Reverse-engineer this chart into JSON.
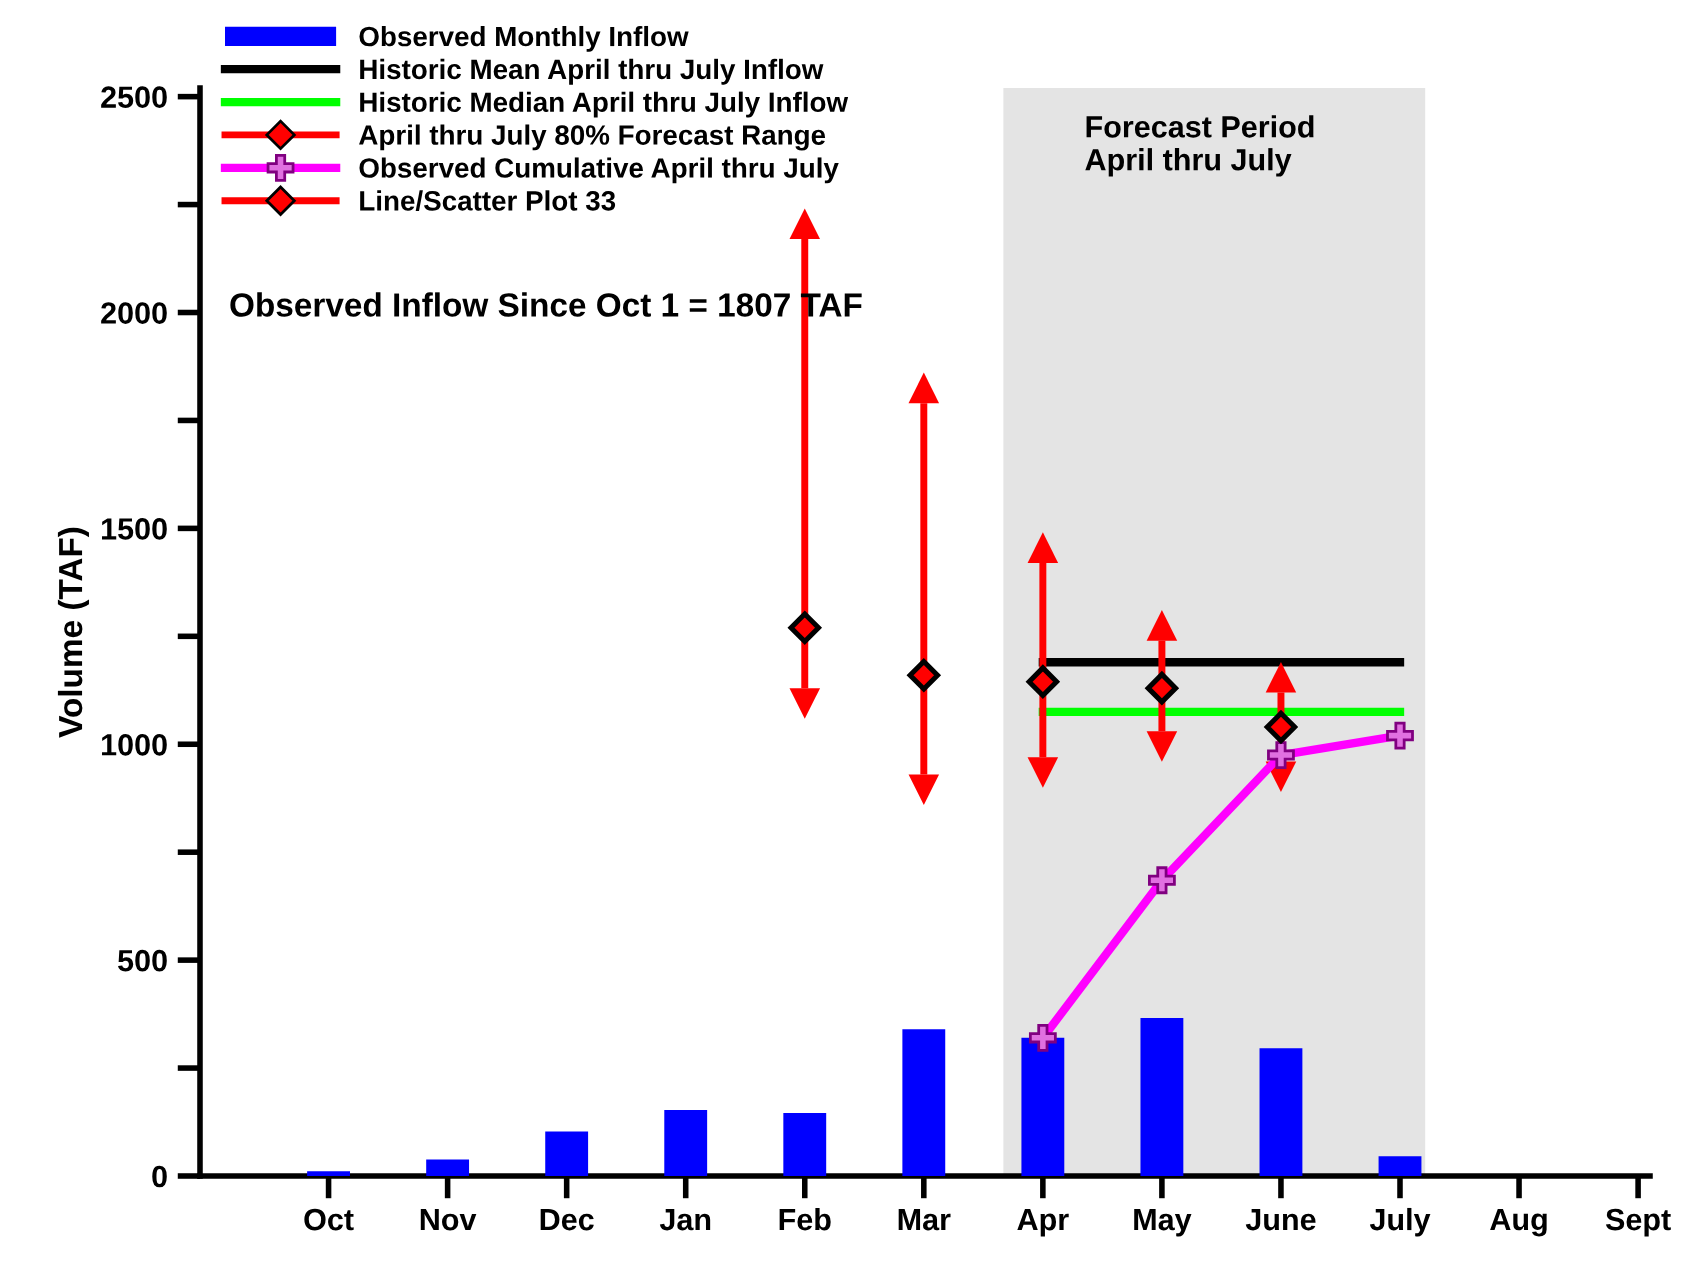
{
  "chart_data": {
    "type": "bar",
    "categories": [
      "Oct",
      "Nov",
      "Dec",
      "Jan",
      "Feb",
      "Mar",
      "Apr",
      "May",
      "June",
      "July",
      "Aug",
      "Sept"
    ],
    "ylabel": "Volume (TAF)",
    "ylim": [
      0,
      2520
    ],
    "yticks": [
      0,
      {
        "value": 250,
        "label": null
      },
      500,
      {
        "value": 750,
        "label": null
      },
      1000,
      {
        "value": 1250,
        "label": null
      },
      1500,
      {
        "value": 1750,
        "label": null
      },
      2000,
      {
        "value": 2250,
        "label": null
      },
      2500
    ],
    "grid": false,
    "legend": "top left",
    "annotations": [
      "Observed Inflow Since Oct 1 = 1807 TAF"
    ],
    "bands": [
      {
        "axis": "x",
        "from": "Apr",
        "to": "July",
        "label": "Forecast Period\nApril thru July",
        "color": "#e4e4e4"
      }
    ],
    "series": [
      {
        "name": "Observed Monthly Inflow",
        "color": "#0000ff",
        "values": [
          11,
          38,
          103,
          153,
          146,
          340,
          320,
          366,
          296,
          46,
          null,
          null
        ]
      },
      {
        "name": "Historic Mean April thru July Inflow",
        "type": "line",
        "color": "#000000",
        "marker": "none",
        "values": [
          null,
          null,
          null,
          null,
          null,
          null,
          1190,
          1190,
          1190,
          1190,
          null,
          null
        ]
      },
      {
        "name": "Historic Median April thru July Inflow",
        "type": "line",
        "color": "#00ff00",
        "marker": "none",
        "values": [
          null,
          null,
          null,
          null,
          null,
          null,
          1075,
          1075,
          1075,
          1075,
          null,
          null
        ]
      },
      {
        "name": "April thru July 80% Forecast Range",
        "type": "scatter",
        "color": "#ff0000",
        "marker": "diamond",
        "values": [
          null,
          null,
          null,
          null,
          null,
          null,
          1145,
          1130,
          1040,
          null,
          null,
          null
        ],
        "errors": [
          null,
          null,
          null,
          null,
          null,
          null,
          [
            970,
            1420
          ],
          [
            1030,
            1240
          ],
          [
            960,
            1120
          ],
          null,
          null,
          null
        ]
      },
      {
        "name": "Observed Cumulative April thru July",
        "type": "line",
        "color": "#ff00ff",
        "marker": "cross",
        "values": [
          null,
          null,
          null,
          null,
          null,
          null,
          320,
          685,
          975,
          1020,
          null,
          null
        ]
      },
      {
        "name": "Line/Scatter Plot 33",
        "type": "scatter",
        "color": "#ff0000",
        "marker": "diamond",
        "values": [
          null,
          null,
          null,
          null,
          1270,
          1160,
          null,
          null,
          null,
          null,
          null,
          null
        ],
        "errors": [
          null,
          null,
          null,
          null,
          [
            1130,
            2170
          ],
          [
            930,
            1790
          ],
          null,
          null,
          null,
          null,
          null,
          null
        ]
      }
    ]
  }
}
